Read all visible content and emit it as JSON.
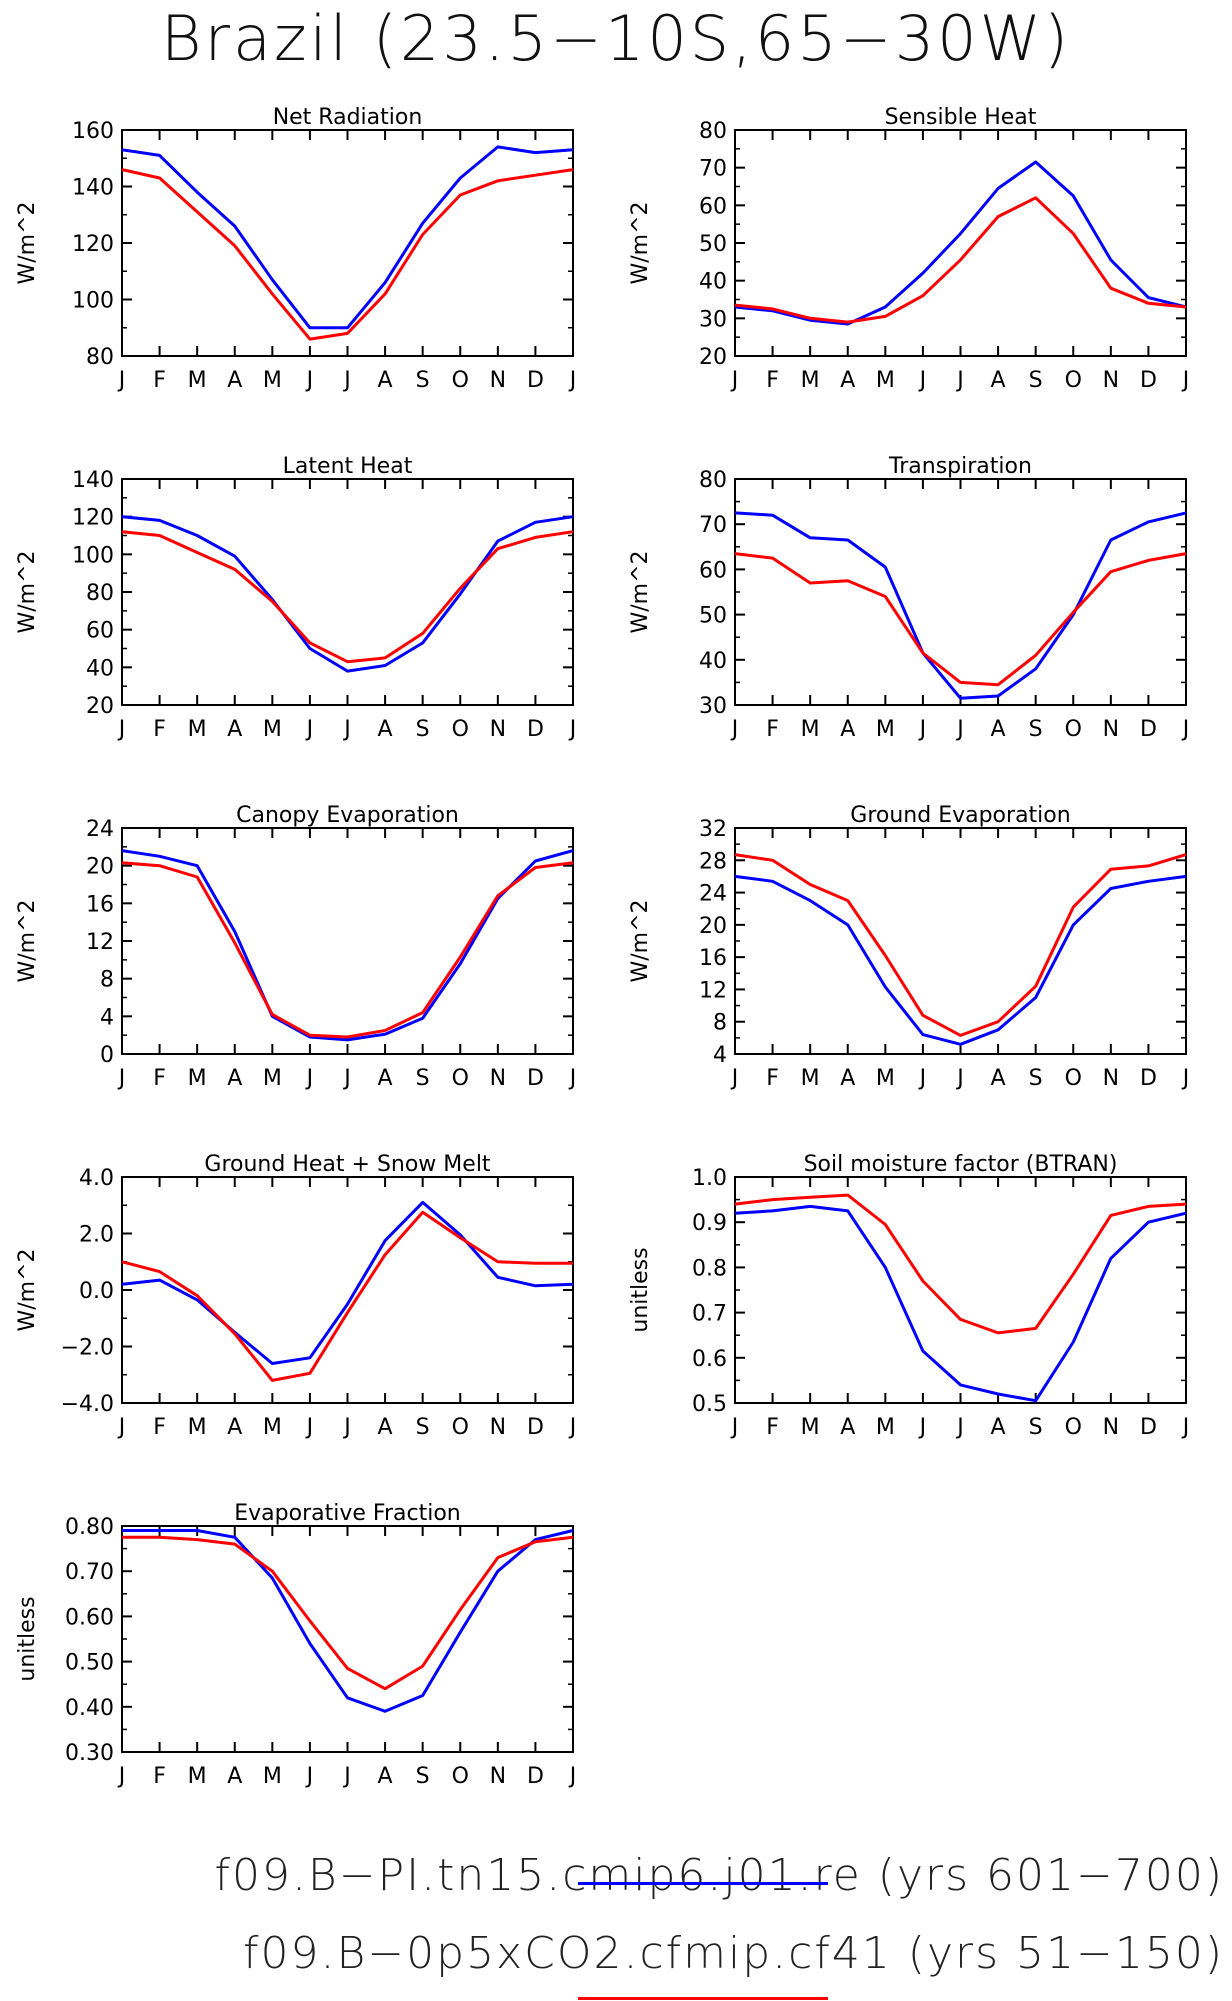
{
  "title": "Brazil (23.5−10S,65−30W)",
  "colors": {
    "series1": "#0000ff",
    "series2": "#ff0000"
  },
  "legend": [
    {
      "label": "f09.B−PI.tn15.cmip6.j01.re (yrs 601−700)",
      "color": "#0000ff"
    },
    {
      "label": "f09.B−0p5xCO2.cfmip.cf41 (yrs 51−150)",
      "color": "#ff0000"
    }
  ],
  "months": [
    "J",
    "F",
    "M",
    "A",
    "M",
    "J",
    "J",
    "A",
    "S",
    "O",
    "N",
    "D",
    "J"
  ],
  "chart_data": [
    {
      "type": "line",
      "title": "Net Radiation",
      "ylabel": "W/m^2",
      "ylim": [
        80,
        160
      ],
      "yticks": [
        80,
        100,
        120,
        140,
        160
      ],
      "ticklabels": [
        "80",
        "100",
        "120",
        "140",
        "160"
      ],
      "series": [
        {
          "values": [
            153,
            151,
            138,
            126,
            107,
            90,
            90,
            106,
            127,
            143,
            154,
            152,
            153
          ]
        },
        {
          "values": [
            146,
            143,
            131,
            119,
            102,
            86,
            88,
            102,
            123,
            137,
            142,
            144,
            146
          ]
        }
      ]
    },
    {
      "type": "line",
      "title": "Sensible Heat",
      "ylabel": "W/m^2",
      "ylim": [
        20,
        80
      ],
      "yticks": [
        20,
        30,
        40,
        50,
        60,
        70,
        80
      ],
      "ticklabels": [
        "20",
        "30",
        "40",
        "50",
        "60",
        "70",
        "80"
      ],
      "series": [
        {
          "values": [
            33,
            32,
            29.5,
            28.5,
            33,
            42,
            52.5,
            64.5,
            71.5,
            62.5,
            45.5,
            35.5,
            33
          ]
        },
        {
          "values": [
            33.5,
            32.5,
            30,
            29,
            30.5,
            36,
            45.5,
            57,
            62,
            52.5,
            38,
            34,
            33
          ]
        }
      ]
    },
    {
      "type": "line",
      "title": "Latent Heat",
      "ylabel": "W/m^2",
      "ylim": [
        20,
        140
      ],
      "yticks": [
        20,
        40,
        60,
        80,
        100,
        120,
        140
      ],
      "ticklabels": [
        "20",
        "40",
        "60",
        "80",
        "100",
        "120",
        "140"
      ],
      "series": [
        {
          "values": [
            120,
            118,
            110,
            99,
            76,
            50,
            38,
            41,
            53,
            79,
            107,
            117,
            120
          ]
        },
        {
          "values": [
            112,
            110,
            101,
            92,
            75,
            53,
            43,
            45,
            58,
            82,
            103,
            109,
            112
          ]
        }
      ]
    },
    {
      "type": "line",
      "title": "Transpiration",
      "ylabel": "W/m^2",
      "ylim": [
        30,
        80
      ],
      "yticks": [
        30,
        40,
        50,
        60,
        70,
        80
      ],
      "ticklabels": [
        "30",
        "40",
        "50",
        "60",
        "70",
        "80"
      ],
      "series": [
        {
          "values": [
            72.5,
            72,
            67,
            66.5,
            60.5,
            41.5,
            31.5,
            32,
            38,
            50,
            66.5,
            70.5,
            72.5
          ]
        },
        {
          "values": [
            63.5,
            62.5,
            57,
            57.5,
            54,
            41.5,
            35,
            34.5,
            41,
            50.5,
            59.5,
            62,
            63.5
          ]
        }
      ]
    },
    {
      "type": "line",
      "title": "Canopy Evaporation",
      "ylabel": "W/m^2",
      "ylim": [
        0,
        24
      ],
      "yticks": [
        0,
        4,
        8,
        12,
        16,
        20,
        24
      ],
      "ticklabels": [
        "0",
        "4",
        "8",
        "12",
        "16",
        "20",
        "24"
      ],
      "series": [
        {
          "values": [
            21.6,
            21.0,
            20.0,
            13.0,
            4.0,
            1.8,
            1.5,
            2.1,
            3.8,
            9.6,
            16.5,
            20.5,
            21.6
          ]
        },
        {
          "values": [
            20.3,
            20.0,
            18.8,
            11.8,
            4.2,
            2.0,
            1.8,
            2.5,
            4.4,
            10.3,
            16.8,
            19.8,
            20.3
          ]
        }
      ]
    },
    {
      "type": "line",
      "title": "Ground Evaporation",
      "ylabel": "W/m^2",
      "ylim": [
        4,
        32
      ],
      "yticks": [
        4,
        8,
        12,
        16,
        20,
        24,
        28,
        32
      ],
      "ticklabels": [
        "4",
        "8",
        "12",
        "16",
        "20",
        "24",
        "28",
        "32"
      ],
      "series": [
        {
          "values": [
            26,
            25.4,
            23,
            20,
            12.3,
            6.4,
            5.2,
            7,
            11,
            20,
            24.5,
            25.4,
            26
          ]
        },
        {
          "values": [
            28.7,
            28,
            25,
            23,
            16.2,
            8.8,
            6.3,
            8,
            12.4,
            22.2,
            26.9,
            27.3,
            28.7
          ]
        }
      ]
    },
    {
      "type": "line",
      "title": "Ground Heat + Snow Melt",
      "ylabel": "W/m^2",
      "ylim": [
        -4,
        4
      ],
      "yticks": [
        -4,
        -2,
        0,
        2,
        4
      ],
      "ticklabels": [
        "−4.0",
        "−2.0",
        "0.0",
        "2.0",
        "4.0"
      ],
      "series": [
        {
          "values": [
            0.2,
            0.35,
            -0.35,
            -1.5,
            -2.6,
            -2.4,
            -0.5,
            1.75,
            3.1,
            1.95,
            0.45,
            0.15,
            0.2
          ]
        },
        {
          "values": [
            1.0,
            0.65,
            -0.2,
            -1.55,
            -3.2,
            -2.95,
            -0.8,
            1.25,
            2.75,
            1.85,
            1.0,
            0.95,
            0.95
          ]
        }
      ]
    },
    {
      "type": "line",
      "title": "Soil moisture factor (BTRAN)",
      "ylabel": "unitless",
      "ylim": [
        0.5,
        1.0
      ],
      "yticks": [
        0.5,
        0.6,
        0.7,
        0.8,
        0.9,
        1.0
      ],
      "ticklabels": [
        "0.5",
        "0.6",
        "0.7",
        "0.8",
        "0.9",
        "1.0"
      ],
      "series": [
        {
          "values": [
            0.92,
            0.925,
            0.935,
            0.925,
            0.8,
            0.615,
            0.54,
            0.52,
            0.505,
            0.635,
            0.82,
            0.9,
            0.92
          ]
        },
        {
          "values": [
            0.94,
            0.95,
            0.955,
            0.96,
            0.895,
            0.77,
            0.685,
            0.655,
            0.665,
            0.785,
            0.915,
            0.935,
            0.94
          ]
        }
      ]
    },
    {
      "type": "line",
      "title": "Evaporative Fraction",
      "ylabel": "unitless",
      "ylim": [
        0.3,
        0.8
      ],
      "yticks": [
        0.3,
        0.4,
        0.5,
        0.6,
        0.7,
        0.8
      ],
      "ticklabels": [
        "0.30",
        "0.40",
        "0.50",
        "0.60",
        "0.70",
        "0.80"
      ],
      "series": [
        {
          "values": [
            0.79,
            0.79,
            0.79,
            0.775,
            0.685,
            0.54,
            0.42,
            0.39,
            0.425,
            0.565,
            0.7,
            0.77,
            0.79
          ]
        },
        {
          "values": [
            0.775,
            0.775,
            0.77,
            0.76,
            0.7,
            0.59,
            0.485,
            0.44,
            0.49,
            0.615,
            0.73,
            0.765,
            0.775
          ]
        }
      ]
    }
  ]
}
